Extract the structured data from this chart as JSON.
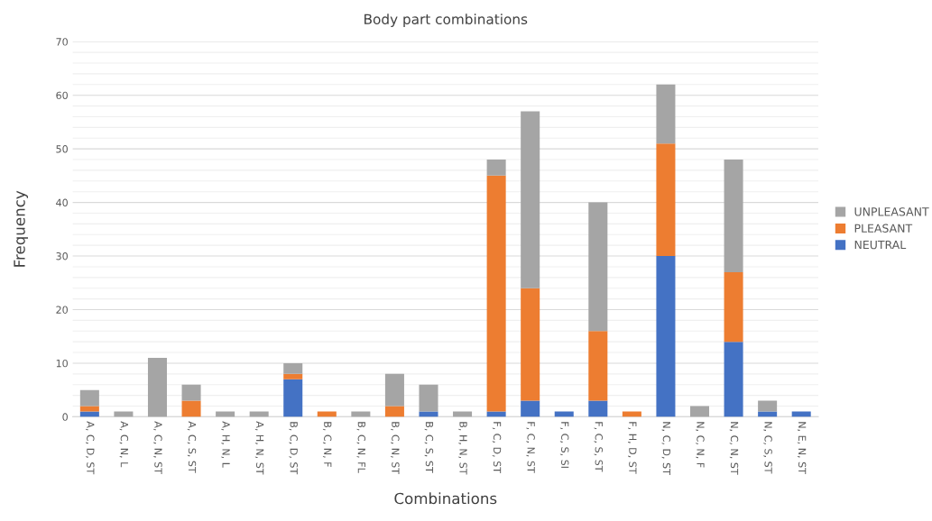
{
  "chart_data": {
    "type": "bar",
    "title": "Body part combinations",
    "xlabel": "Combinations",
    "ylabel": "Frequency",
    "stacked": true,
    "grid": "y",
    "legend": "right",
    "categories": [
      "A, C, D, ST",
      "A, C, N, L",
      "A, C, N, ST",
      "A, C, S, ST",
      "A, H, N, L",
      "A, H, N, ST",
      "B, C, D, ST",
      "B, C, N, F",
      "B, C, N, FL",
      "B, C, N, ST",
      "B, C, S, ST",
      "B, H, N, ST",
      "F, C, D, ST",
      "F, C, N, ST",
      "F, C, S, SI",
      "F, C, S, ST",
      "F, H, D, ST",
      "N, C, D, ST",
      "N, C, N, F",
      "N, C, N, ST",
      "N, C, S, ST",
      "N, E, N, ST"
    ],
    "series": [
      {
        "name": "NEUTRAL",
        "color": "#4472c4",
        "values": [
          1,
          0,
          0,
          0,
          0,
          0,
          7,
          0,
          0,
          0,
          1,
          0,
          1,
          3,
          1,
          3,
          0,
          30,
          0,
          14,
          1,
          1
        ]
      },
      {
        "name": "PLEASANT",
        "color": "#ed7d31",
        "values": [
          1,
          0,
          0,
          3,
          0,
          0,
          1,
          1,
          0,
          2,
          0,
          0,
          44,
          21,
          0,
          13,
          1,
          21,
          0,
          13,
          0,
          0
        ]
      },
      {
        "name": "UNPLEASANT",
        "color": "#a5a5a5",
        "values": [
          3,
          1,
          11,
          3,
          1,
          1,
          2,
          0,
          1,
          6,
          5,
          1,
          3,
          33,
          0,
          24,
          0,
          11,
          2,
          21,
          2,
          0
        ]
      }
    ],
    "ylim": [
      0,
      70
    ],
    "yticks": [
      0,
      {
        "value": 2,
        "label": null
      },
      {
        "value": 4,
        "label": null
      },
      {
        "value": 6,
        "label": null
      },
      {
        "value": 8,
        "label": null
      },
      10,
      {
        "value": 12,
        "label": null
      },
      {
        "value": 14,
        "label": null
      },
      {
        "value": 16,
        "label": null
      },
      {
        "value": 18,
        "label": null
      },
      20,
      {
        "value": 22,
        "label": null
      },
      {
        "value": 24,
        "label": null
      },
      {
        "value": 26,
        "label": null
      },
      {
        "value": 28,
        "label": null
      },
      30,
      {
        "value": 32,
        "label": null
      },
      {
        "value": 34,
        "label": null
      },
      {
        "value": 36,
        "label": null
      },
      {
        "value": 38,
        "label": null
      },
      40,
      {
        "value": 42,
        "label": null
      },
      {
        "value": 44,
        "label": null
      },
      {
        "value": 46,
        "label": null
      },
      {
        "value": 48,
        "label": null
      },
      50,
      {
        "value": 52,
        "label": null
      },
      {
        "value": 54,
        "label": null
      },
      {
        "value": 56,
        "label": null
      },
      {
        "value": 58,
        "label": null
      },
      60,
      {
        "value": 62,
        "label": null
      },
      {
        "value": 64,
        "label": null
      },
      {
        "value": 66,
        "label": null
      },
      {
        "value": 68,
        "label": null
      },
      70
    ]
  }
}
